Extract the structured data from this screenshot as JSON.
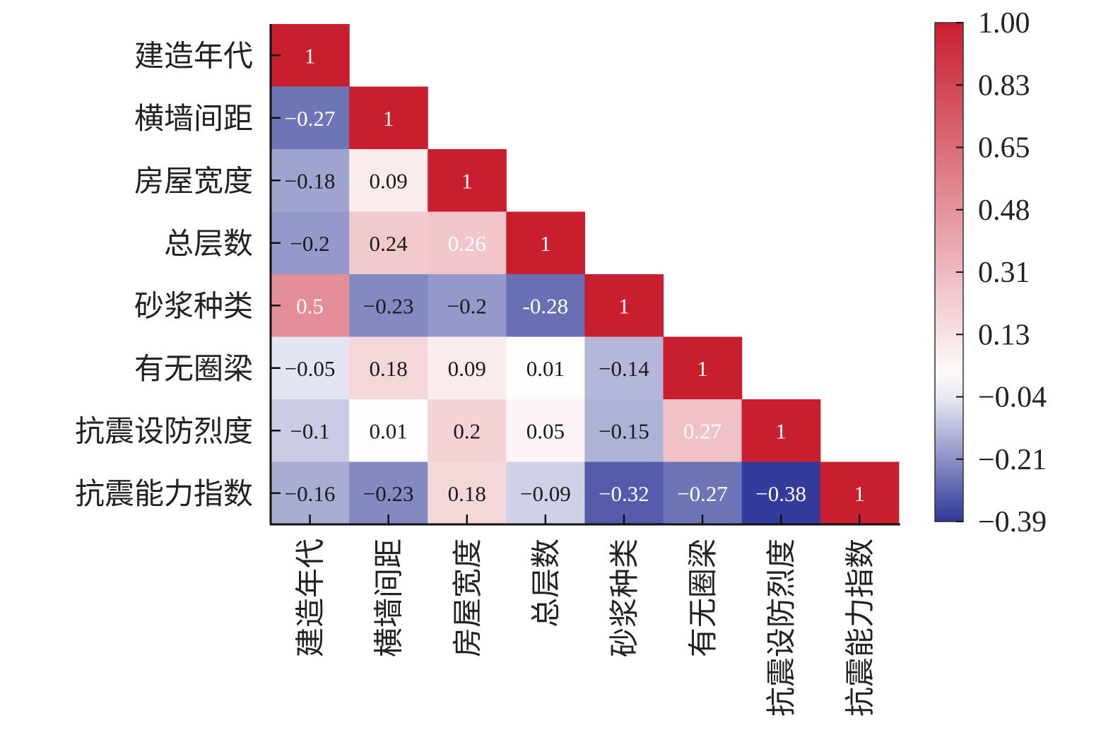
{
  "chart_data": {
    "type": "heatmap",
    "subtype": "lower-triangular correlation matrix",
    "variables": [
      "建造年代",
      "横墙间距",
      "房屋宽度",
      "总层数",
      "砂浆种类",
      "有无圈梁",
      "抗震设防烈度",
      "抗震能力指数"
    ],
    "matrix_labels": [
      [
        "1"
      ],
      [
        "−0.27",
        "1"
      ],
      [
        "−0.18",
        "0.09",
        "1"
      ],
      [
        "−0.2",
        "0.24",
        "0.26",
        "1"
      ],
      [
        "0.5",
        "−0.23",
        "−0.2",
        "-0.28",
        "1"
      ],
      [
        "−0.05",
        "0.18",
        "0.09",
        "0.01",
        "−0.14",
        "1"
      ],
      [
        "−0.1",
        "0.01",
        "0.2",
        "0.05",
        "−0.15",
        "0.27",
        "1"
      ],
      [
        "−0.16",
        "−0.23",
        "0.18",
        "−0.09",
        "−0.32",
        "−0.27",
        "−0.38",
        "1"
      ]
    ],
    "matrix_values": [
      [
        1
      ],
      [
        -0.27,
        1
      ],
      [
        -0.18,
        0.09,
        1
      ],
      [
        -0.2,
        0.24,
        0.26,
        1
      ],
      [
        0.5,
        -0.23,
        -0.2,
        -0.28,
        1
      ],
      [
        -0.05,
        0.18,
        0.09,
        0.01,
        -0.14,
        1
      ],
      [
        -0.1,
        0.01,
        0.2,
        0.05,
        -0.15,
        0.27,
        1
      ],
      [
        -0.16,
        -0.23,
        0.18,
        -0.09,
        -0.32,
        -0.27,
        -0.38,
        1
      ]
    ],
    "colorbar": {
      "min": -0.39,
      "max": 1.0,
      "ticks": [
        "1.00",
        "0.83",
        "0.65",
        "0.48",
        "0.31",
        "0.13",
        "−0.04",
        "−0.21",
        "−0.39"
      ],
      "colors": {
        "low": "#2e3797",
        "mid": "#ffffff",
        "high": "#c81e2e"
      }
    }
  }
}
